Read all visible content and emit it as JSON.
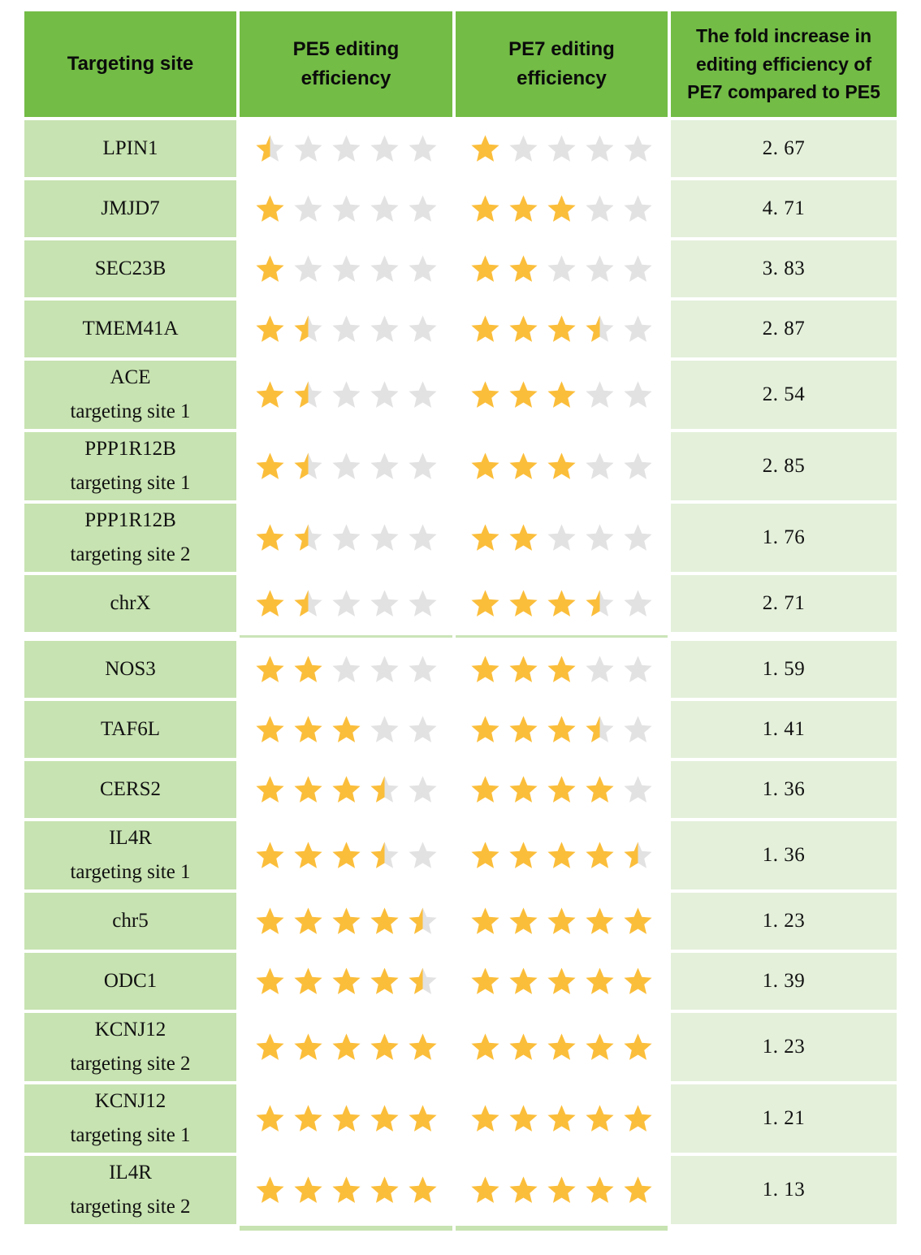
{
  "chart_data": {
    "type": "table",
    "rating_scale": 5,
    "columns": [
      "Targeting site",
      "PE5 editing efficiency",
      "PE7 editing efficiency",
      "The fold increase in editing efficiency of PE7 compared to PE5"
    ],
    "rows": [
      {
        "site": "LPIN1",
        "site_line2": "",
        "pe5_stars": 0.5,
        "pe7_stars": 1,
        "fold": "2. 67"
      },
      {
        "site": "JMJD7",
        "site_line2": "",
        "pe5_stars": 1,
        "pe7_stars": 3,
        "fold": "4. 71"
      },
      {
        "site": "SEC23B",
        "site_line2": "",
        "pe5_stars": 1,
        "pe7_stars": 2,
        "fold": "3. 83"
      },
      {
        "site": "TMEM41A",
        "site_line2": "",
        "pe5_stars": 1.5,
        "pe7_stars": 3.5,
        "fold": "2. 87"
      },
      {
        "site": "ACE",
        "site_line2": "targeting site 1",
        "pe5_stars": 1.5,
        "pe7_stars": 3,
        "fold": "2. 54"
      },
      {
        "site": "PPP1R12B",
        "site_line2": "targeting site 1",
        "pe5_stars": 1.5,
        "pe7_stars": 3,
        "fold": "2. 85"
      },
      {
        "site": "PPP1R12B",
        "site_line2": "targeting site 2",
        "pe5_stars": 1.5,
        "pe7_stars": 2,
        "fold": "1. 76"
      },
      {
        "site": "chrX",
        "site_line2": "",
        "pe5_stars": 1.5,
        "pe7_stars": 3.5,
        "fold": "2. 71"
      },
      {
        "site": "NOS3",
        "site_line2": "",
        "pe5_stars": 2,
        "pe7_stars": 3,
        "fold": "1. 59"
      },
      {
        "site": "TAF6L",
        "site_line2": "",
        "pe5_stars": 3,
        "pe7_stars": 3.5,
        "fold": "1. 41"
      },
      {
        "site": "CERS2",
        "site_line2": "",
        "pe5_stars": 3.5,
        "pe7_stars": 4,
        "fold": "1. 36"
      },
      {
        "site": "IL4R",
        "site_line2": "targeting site 1",
        "pe5_stars": 3.5,
        "pe7_stars": 4.5,
        "fold": "1. 36"
      },
      {
        "site": "chr5",
        "site_line2": "",
        "pe5_stars": 4.5,
        "pe7_stars": 5,
        "fold": "1. 23"
      },
      {
        "site": "ODC1",
        "site_line2": "",
        "pe5_stars": 4.5,
        "pe7_stars": 5,
        "fold": "1. 39"
      },
      {
        "site": "KCNJ12",
        "site_line2": "targeting site 2",
        "pe5_stars": 5,
        "pe7_stars": 5,
        "fold": "1. 23"
      },
      {
        "site": "KCNJ12",
        "site_line2": "targeting site 1",
        "pe5_stars": 5,
        "pe7_stars": 5,
        "fold": "1. 21"
      },
      {
        "site": "IL4R",
        "site_line2": "targeting site 2",
        "pe5_stars": 5,
        "pe7_stars": 5,
        "fold": "1. 13"
      }
    ],
    "section_break_after_row": 8
  },
  "colors": {
    "header_green": "#73BC46",
    "label_green": "#C7E3B1",
    "fold_green": "#E4F0DA",
    "star_gold": "#FBBE3B",
    "star_gray": "#E2E2E2",
    "divider_green": "#CBE4B8"
  }
}
